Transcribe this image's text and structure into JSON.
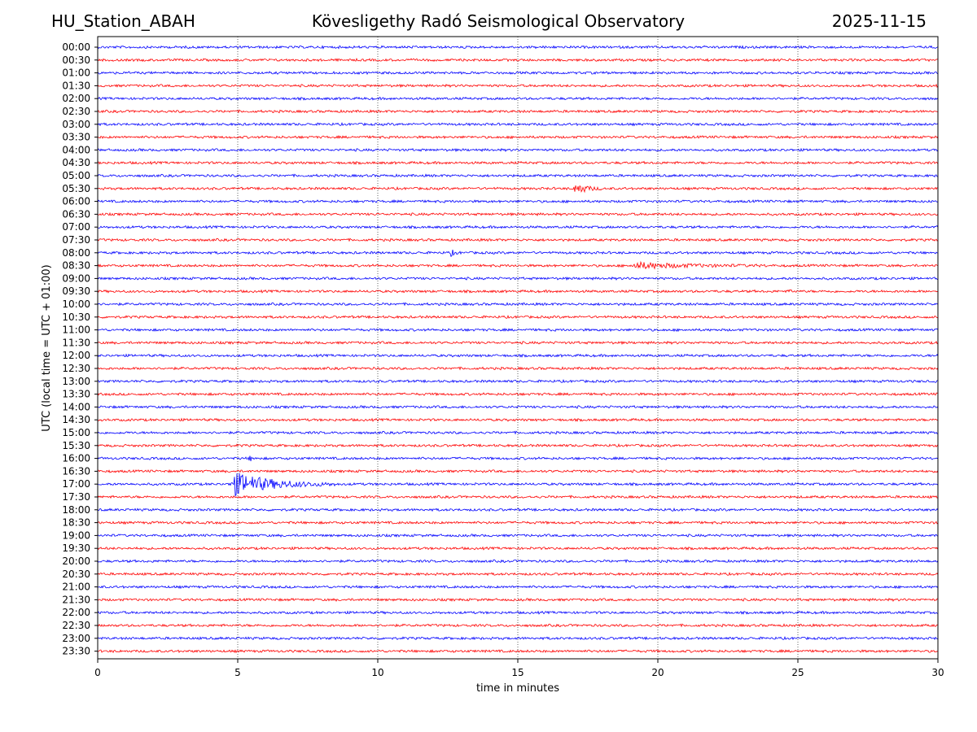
{
  "header": {
    "station": "HU_Station_ABAH",
    "observatory": "Kövesligethy Radó Seismological Observatory",
    "date": "2025-11-15"
  },
  "chart_data": {
    "type": "line",
    "title": "Kövesligethy Radó Seismological Observatory",
    "xlabel": "time in minutes",
    "ylabel": "UTC (local time = UTC + 01:00)",
    "xlim": [
      0,
      30
    ],
    "xticks": [
      0,
      5,
      10,
      15,
      20,
      25,
      30
    ],
    "grid": "vertical dotted at 5-minute intervals",
    "row_labels": [
      "00:00",
      "00:30",
      "01:00",
      "01:30",
      "02:00",
      "02:30",
      "03:00",
      "03:30",
      "04:00",
      "04:30",
      "05:00",
      "05:30",
      "06:00",
      "06:30",
      "07:00",
      "07:30",
      "08:00",
      "08:30",
      "09:00",
      "09:30",
      "10:00",
      "10:30",
      "11:00",
      "11:30",
      "12:00",
      "12:30",
      "13:00",
      "13:30",
      "14:00",
      "14:30",
      "15:00",
      "15:30",
      "16:00",
      "16:30",
      "17:00",
      "17:30",
      "18:00",
      "18:30",
      "19:00",
      "19:30",
      "20:00",
      "20:30",
      "21:00",
      "21:30",
      "22:00",
      "22:30",
      "23:00",
      "23:30"
    ],
    "colors": [
      "#0000ff",
      "#ff0000"
    ],
    "events": [
      {
        "row": "05:30",
        "start_min": 17.0,
        "end_min": 18.0,
        "amplitude": "moderate"
      },
      {
        "row": "08:00",
        "start_min": 12.6,
        "end_min": 13.0,
        "amplitude": "small"
      },
      {
        "row": "08:30",
        "start_min": 19.0,
        "end_min": 24.0,
        "amplitude": "small"
      },
      {
        "row": "09:30",
        "start_min": 24.7,
        "end_min": 24.9,
        "amplitude": "small"
      },
      {
        "row": "16:00",
        "start_min": 5.4,
        "end_min": 5.7,
        "amplitude": "small"
      },
      {
        "row": "17:00",
        "start_min": 4.7,
        "end_min": 8.5,
        "amplitude": "large"
      }
    ]
  }
}
